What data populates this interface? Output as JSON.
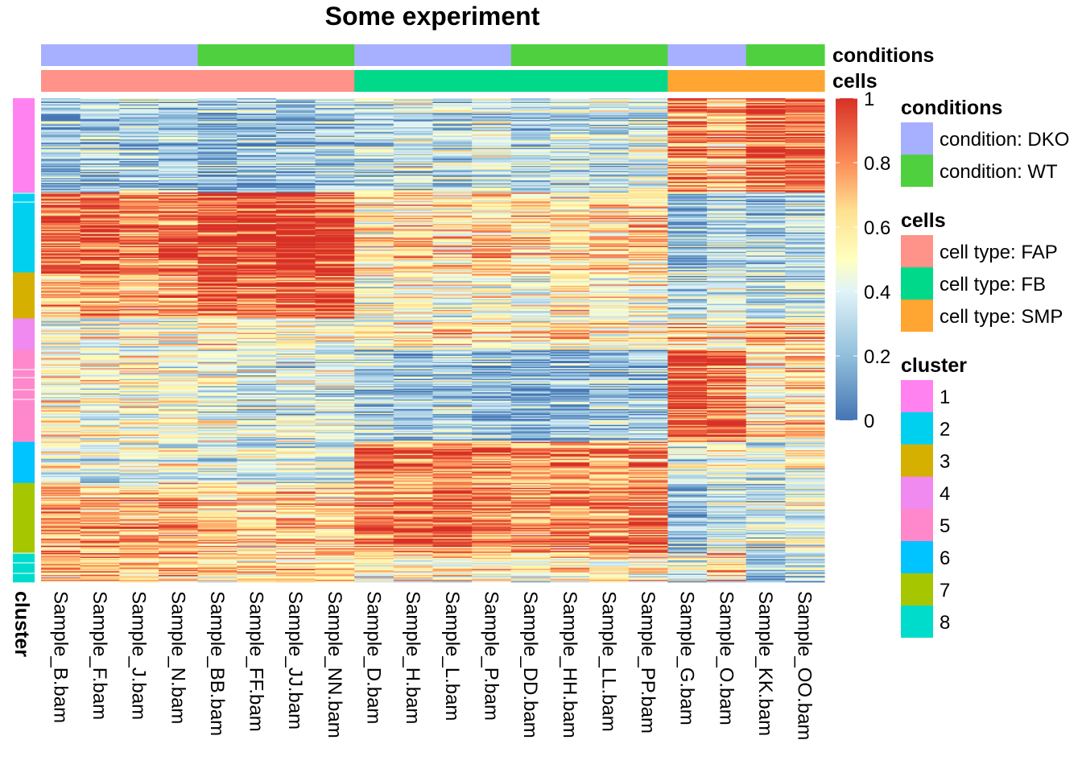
{
  "chart_data": {
    "type": "heatmap",
    "title": "Some experiment",
    "columns": [
      "Sample_B.bam",
      "Sample_F.bam",
      "Sample_J.bam",
      "Sample_N.bam",
      "Sample_BB.bam",
      "Sample_FF.bam",
      "Sample_JJ.bam",
      "Sample_NN.bam",
      "Sample_D.bam",
      "Sample_H.bam",
      "Sample_L.bam",
      "Sample_P.bam",
      "Sample_DD.bam",
      "Sample_HH.bam",
      "Sample_LL.bam",
      "Sample_PP.bam",
      "Sample_G.bam",
      "Sample_O.bam",
      "Sample_KK.bam",
      "Sample_OO.bam"
    ],
    "column_annotations": [
      {
        "name": "conditions",
        "values": [
          "condition: DKO",
          "condition: DKO",
          "condition: DKO",
          "condition: DKO",
          "condition: WT",
          "condition: WT",
          "condition: WT",
          "condition: WT",
          "condition: DKO",
          "condition: DKO",
          "condition: DKO",
          "condition: DKO",
          "condition: WT",
          "condition: WT",
          "condition: WT",
          "condition: WT",
          "condition: DKO",
          "condition: DKO",
          "condition: WT",
          "condition: WT"
        ]
      },
      {
        "name": "cells",
        "values": [
          "cell type: FAP",
          "cell type: FAP",
          "cell type: FAP",
          "cell type: FAP",
          "cell type: FAP",
          "cell type: FAP",
          "cell type: FAP",
          "cell type: FAP",
          "cell type: FB",
          "cell type: FB",
          "cell type: FB",
          "cell type: FB",
          "cell type: FB",
          "cell type: FB",
          "cell type: FB",
          "cell type: FB",
          "cell type: SMP",
          "cell type: SMP",
          "cell type: SMP",
          "cell type: SMP"
        ]
      }
    ],
    "row_annotation": {
      "name": "cluster",
      "labels": [
        "1",
        "2",
        "3",
        "4",
        "5",
        "6",
        "7",
        "8"
      ]
    },
    "row_blocks": [
      {
        "cluster": "1",
        "fraction": 0.195,
        "level": [
          0.25,
          0.3,
          0.28,
          0.3,
          0.2,
          0.22,
          0.22,
          0.28,
          0.35,
          0.38,
          0.35,
          0.4,
          0.3,
          0.35,
          0.35,
          0.4,
          0.85,
          0.7,
          0.92,
          0.9
        ]
      },
      {
        "cluster": "2",
        "fraction": 0.165,
        "level": [
          0.82,
          0.85,
          0.8,
          0.82,
          0.92,
          0.95,
          0.95,
          0.92,
          0.55,
          0.6,
          0.58,
          0.62,
          0.62,
          0.58,
          0.6,
          0.62,
          0.18,
          0.3,
          0.25,
          0.3
        ]
      },
      {
        "cluster": "3",
        "fraction": 0.095,
        "level": [
          0.7,
          0.78,
          0.72,
          0.72,
          0.88,
          0.85,
          0.9,
          0.88,
          0.45,
          0.5,
          0.45,
          0.5,
          0.48,
          0.55,
          0.5,
          0.52,
          0.3,
          0.4,
          0.3,
          0.35
        ]
      },
      {
        "cluster": "4",
        "fraction": 0.065,
        "level": [
          0.5,
          0.45,
          0.52,
          0.5,
          0.55,
          0.5,
          0.52,
          0.5,
          0.55,
          0.55,
          0.6,
          0.55,
          0.55,
          0.6,
          0.55,
          0.55,
          0.7,
          0.55,
          0.75,
          0.7
        ]
      },
      {
        "cluster": "5",
        "fraction": 0.19,
        "level": [
          0.55,
          0.5,
          0.52,
          0.5,
          0.45,
          0.4,
          0.4,
          0.4,
          0.3,
          0.25,
          0.3,
          0.25,
          0.2,
          0.2,
          0.25,
          0.25,
          0.95,
          0.9,
          0.6,
          0.65
        ]
      },
      {
        "cluster": "6",
        "fraction": 0.085,
        "level": [
          0.45,
          0.4,
          0.45,
          0.45,
          0.4,
          0.4,
          0.4,
          0.4,
          0.85,
          0.8,
          0.8,
          0.8,
          0.8,
          0.8,
          0.75,
          0.78,
          0.4,
          0.45,
          0.4,
          0.45
        ]
      },
      {
        "cluster": "7",
        "fraction": 0.145,
        "level": [
          0.7,
          0.68,
          0.7,
          0.7,
          0.65,
          0.62,
          0.65,
          0.62,
          0.8,
          0.8,
          0.85,
          0.82,
          0.78,
          0.8,
          0.82,
          0.85,
          0.2,
          0.35,
          0.35,
          0.4
        ]
      },
      {
        "cluster": "8",
        "fraction": 0.06,
        "level": [
          0.7,
          0.72,
          0.65,
          0.65,
          0.6,
          0.62,
          0.6,
          0.62,
          0.5,
          0.55,
          0.55,
          0.55,
          0.5,
          0.55,
          0.55,
          0.55,
          0.4,
          0.6,
          0.2,
          0.3
        ]
      }
    ],
    "n_rows": 400,
    "color_scale": {
      "range": [
        0,
        1
      ],
      "ticks": [
        "0",
        "0.2",
        "0.4",
        "0.6",
        "0.8",
        "1"
      ],
      "stops": [
        {
          "value": 0.0,
          "color": "#4575b4"
        },
        {
          "value": 0.2,
          "color": "#91bfdb"
        },
        {
          "value": 0.4,
          "color": "#e0f3f8"
        },
        {
          "value": 0.5,
          "color": "#ffffbf"
        },
        {
          "value": 0.65,
          "color": "#fee090"
        },
        {
          "value": 0.8,
          "color": "#fc8d59"
        },
        {
          "value": 1.0,
          "color": "#d73027"
        }
      ]
    },
    "legend": {
      "position": "right",
      "groups": [
        {
          "title": "conditions",
          "items": [
            {
              "label": "condition: DKO",
              "color": "#a7b0ff"
            },
            {
              "label": "condition: WT",
              "color": "#4fd13f"
            }
          ]
        },
        {
          "title": "cells",
          "items": [
            {
              "label": "cell type: FAP",
              "color": "#ff9289"
            },
            {
              "label": "cell type: FB",
              "color": "#00d98a"
            },
            {
              "label": "cell type: SMP",
              "color": "#ffa532"
            }
          ]
        },
        {
          "title": "cluster",
          "items": [
            {
              "label": "1",
              "color": "#ff82f0"
            },
            {
              "label": "2",
              "color": "#00d0f0"
            },
            {
              "label": "3",
              "color": "#d6b000"
            },
            {
              "label": "4",
              "color": "#f08af0"
            },
            {
              "label": "5",
              "color": "#ff88cc"
            },
            {
              "label": "6",
              "color": "#00c4ff"
            },
            {
              "label": "7",
              "color": "#a6c600"
            },
            {
              "label": "8",
              "color": "#00dccc"
            }
          ]
        }
      ]
    }
  }
}
